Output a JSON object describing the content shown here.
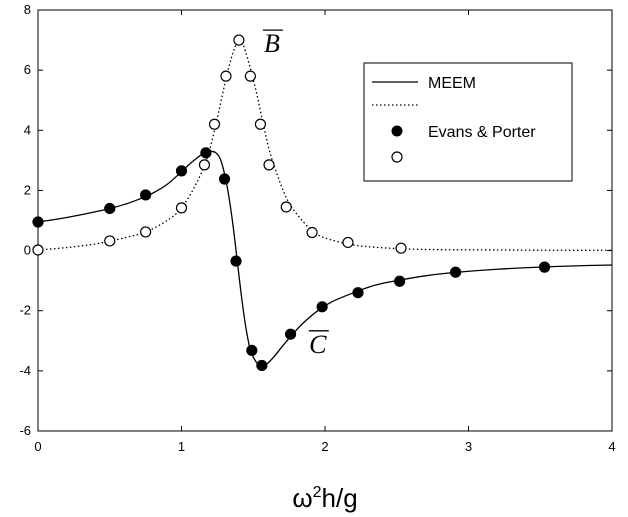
{
  "chart_data": {
    "type": "line",
    "title": "",
    "xlabel": "ω²h/g",
    "ylabel": "",
    "xlim": [
      0,
      4
    ],
    "ylim": [
      -6,
      8
    ],
    "x_ticks": [
      "0",
      "1",
      "2",
      "3",
      "4"
    ],
    "y_ticks": [
      "-6",
      "-4",
      "-2",
      "0",
      "2",
      "4",
      "6",
      "8"
    ],
    "grid": false,
    "legend_position": "top-right",
    "series": [
      {
        "name": "MEEM",
        "style": "solid",
        "x": [
          0,
          0.1,
          0.2,
          0.3,
          0.4,
          0.5,
          0.6,
          0.7,
          0.8,
          0.9,
          1.0,
          1.05,
          1.1,
          1.15,
          1.2,
          1.24,
          1.27,
          1.3,
          1.33,
          1.36,
          1.39,
          1.42,
          1.45,
          1.48,
          1.52,
          1.56,
          1.6,
          1.65,
          1.7,
          1.78,
          1.85,
          1.95,
          2.05,
          2.2,
          2.35,
          2.5,
          2.7,
          2.9,
          3.2,
          3.5,
          3.8,
          4.0
        ],
        "values": [
          0.95,
          1.02,
          1.1,
          1.19,
          1.29,
          1.4,
          1.53,
          1.7,
          1.91,
          2.2,
          2.62,
          2.85,
          3.05,
          3.22,
          3.3,
          3.25,
          3.05,
          2.55,
          1.8,
          0.8,
          -0.4,
          -1.6,
          -2.6,
          -3.3,
          -3.7,
          -3.82,
          -3.75,
          -3.5,
          -3.2,
          -2.75,
          -2.4,
          -2.0,
          -1.7,
          -1.4,
          -1.15,
          -1.0,
          -0.84,
          -0.73,
          -0.62,
          -0.55,
          -0.5,
          -0.48
        ]
      },
      {
        "name": "",
        "style": "dotted",
        "x": [
          0,
          0.2,
          0.4,
          0.5,
          0.6,
          0.75,
          0.9,
          1.0,
          1.1,
          1.18,
          1.24,
          1.3,
          1.36,
          1.41,
          1.46,
          1.52,
          1.57,
          1.62,
          1.7,
          1.76,
          1.85,
          1.92,
          2.0,
          2.16,
          2.3,
          2.53,
          2.8,
          3.2,
          3.6,
          4.0
        ],
        "values": [
          0.02,
          0.1,
          0.22,
          0.32,
          0.42,
          0.62,
          1.0,
          1.42,
          2.2,
          3.1,
          4.2,
          5.5,
          6.6,
          7.0,
          6.4,
          5.3,
          4.2,
          3.2,
          2.1,
          1.5,
          0.95,
          0.62,
          0.42,
          0.22,
          0.13,
          0.06,
          0.03,
          0.02,
          0.01,
          0.01
        ]
      },
      {
        "name": "Evans & Porter",
        "style": "filled-circle",
        "x": [
          0,
          0.5,
          0.75,
          1.0,
          1.17,
          1.3,
          1.38,
          1.49,
          1.56,
          1.76,
          1.98,
          2.23,
          2.52,
          2.91,
          3.53
        ],
        "values": [
          0.95,
          1.4,
          1.85,
          2.65,
          3.25,
          2.38,
          -0.35,
          -3.32,
          -3.82,
          -2.78,
          -1.87,
          -1.4,
          -1.02,
          -0.72,
          -0.55
        ]
      },
      {
        "name": "",
        "style": "open-circle",
        "x": [
          0,
          0.5,
          0.75,
          1.0,
          1.16,
          1.23,
          1.31,
          1.4,
          1.48,
          1.55,
          1.61,
          1.73,
          1.91,
          2.16,
          2.53
        ],
        "values": [
          0.02,
          0.32,
          0.62,
          1.42,
          2.85,
          4.2,
          5.8,
          7.0,
          5.8,
          4.2,
          2.85,
          1.45,
          0.6,
          0.27,
          0.08
        ]
      }
    ],
    "annotations": [
      {
        "text": "B",
        "overbar": true,
        "x": 1.63,
        "y": 6.6
      },
      {
        "text": "C",
        "overbar": true,
        "x": 1.95,
        "y": -3.4
      }
    ]
  }
}
